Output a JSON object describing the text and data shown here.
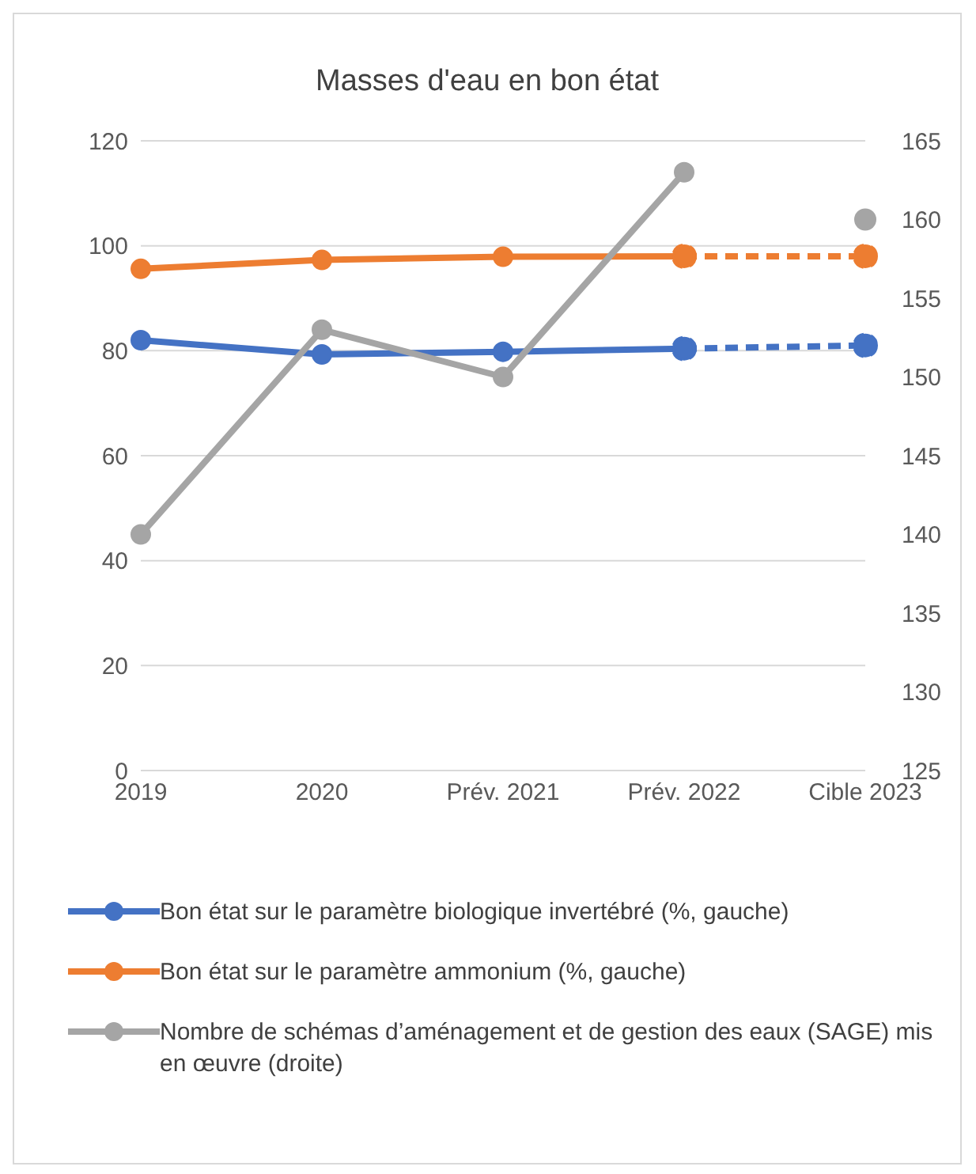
{
  "chart_data": {
    "type": "line",
    "title": "Masses d'eau en bon état",
    "categories": [
      "2019",
      "2020",
      "Prév. 2021",
      "Prév. 2022",
      "Cible 2023"
    ],
    "series": [
      {
        "name": "Bon état sur le paramètre biologique invertébré (%, gauche)",
        "color": "#4472c4",
        "values": [
          82,
          79.3,
          79.8,
          80.4,
          null
        ]
      },
      {
        "color": "#4472c4",
        "line_style": "dashed",
        "values": [
          null,
          null,
          null,
          80.4,
          81
        ]
      },
      {
        "name": "Bon état sur le paramètre ammonium (%, gauche)",
        "color": "#ed7d31",
        "values": [
          95.6,
          97.3,
          97.9,
          98,
          null
        ]
      },
      {
        "color": "#ed7d31",
        "line_style": "dashed",
        "values": [
          null,
          null,
          null,
          98,
          98
        ]
      },
      {
        "name": "Nombre de schémas d’aménagement et de gestion des eaux (SAGE) mis en œuvre (droite)",
        "color": "#a5a5a5",
        "axis": "y2",
        "values": [
          140,
          153,
          150,
          163,
          null
        ]
      },
      {
        "type": "scatter",
        "color": "#a5a5a5",
        "axis": "y2",
        "values": [
          null,
          null,
          null,
          null,
          160
        ]
      }
    ],
    "ylim": [
      0,
      120
    ],
    "yticks": [
      0,
      20,
      40,
      60,
      80,
      100,
      120
    ],
    "y2lim": [
      125,
      165
    ],
    "y2ticks": [
      125,
      130,
      135,
      140,
      145,
      150,
      155,
      160,
      165
    ],
    "grid": "y",
    "legend": "bottom",
    "marker": "circle",
    "line_style": "solid"
  }
}
